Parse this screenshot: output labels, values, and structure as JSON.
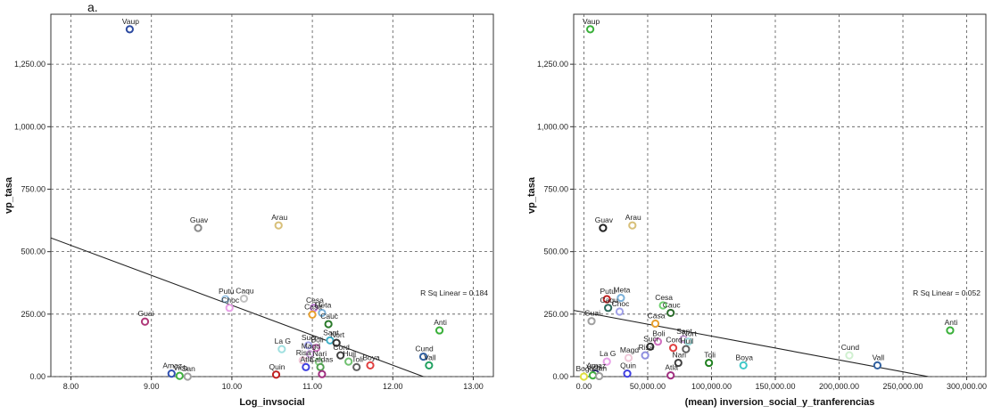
{
  "figure_label": "a.",
  "chart_data": [
    {
      "type": "scatter",
      "xlabel": "Log_invsocial",
      "ylabel": "vp_tasa",
      "xlim": [
        7.75,
        13.25
      ],
      "ylim": [
        0,
        1450
      ],
      "x_ticks": [
        8,
        9,
        10,
        11,
        12,
        13
      ],
      "x_tick_labels": [
        "8.00",
        "9.00",
        "10.00",
        "11.00",
        "12.00",
        "13.00"
      ],
      "y_ticks": [
        0,
        250,
        500,
        750,
        1000,
        1250
      ],
      "y_tick_labels": [
        "0.00",
        "250.00",
        "500.00",
        "750.00",
        "1,000.00",
        "1,250.00"
      ],
      "grid": true,
      "fit_line": {
        "x": [
          7.75,
          12.38
        ],
        "y": [
          555,
          0
        ]
      },
      "annotation": "R Sq Linear = 0.184",
      "points": [
        {
          "label": "Vaup",
          "x": 8.73,
          "y": 1390,
          "color": "#2c4aa0"
        },
        {
          "label": "Guav",
          "x": 9.58,
          "y": 595,
          "color": "#8a8a8a"
        },
        {
          "label": "Arau",
          "x": 10.58,
          "y": 605,
          "color": "#d8c07a"
        },
        {
          "label": "Putu",
          "x": 9.92,
          "y": 310,
          "color": "#9ec8e8"
        },
        {
          "label": "Choc",
          "x": 9.97,
          "y": 275,
          "color": "#e8a0e8"
        },
        {
          "label": "Caqu",
          "x": 10.15,
          "y": 312,
          "color": "#c0c0c0"
        },
        {
          "label": "Guai",
          "x": 8.92,
          "y": 220,
          "color": "#b03a7a"
        },
        {
          "label": "Cesa",
          "x": 11.02,
          "y": 275,
          "color": "#c07ad8"
        },
        {
          "label": "Meta",
          "x": 11.12,
          "y": 255,
          "color": "#7ab0d8"
        },
        {
          "label": "Casa",
          "x": 11.0,
          "y": 248,
          "color": "#e8a030"
        },
        {
          "label": "Cauc",
          "x": 11.2,
          "y": 210,
          "color": "#2a7a2a"
        },
        {
          "label": "Anti",
          "x": 12.58,
          "y": 185,
          "color": "#3ab03a"
        },
        {
          "label": "Sant",
          "x": 11.22,
          "y": 145,
          "color": "#40b0c8"
        },
        {
          "label": "Nort",
          "x": 11.3,
          "y": 135,
          "color": "#333333"
        },
        {
          "label": "Sucr",
          "x": 10.95,
          "y": 125,
          "color": "#a0a0e8"
        },
        {
          "label": "Boli",
          "x": 11.05,
          "y": 115,
          "color": "#d070c0"
        },
        {
          "label": "La G",
          "x": 10.62,
          "y": 110,
          "color": "#a0e0e0"
        },
        {
          "label": "Magd",
          "x": 10.97,
          "y": 90,
          "color": "#c8a0d8"
        },
        {
          "label": "Cord",
          "x": 11.35,
          "y": 85,
          "color": "#404040"
        },
        {
          "label": "Cund",
          "x": 12.38,
          "y": 80,
          "color": "#3060a0"
        },
        {
          "label": "Boya",
          "x": 11.72,
          "y": 45,
          "color": "#e04040"
        },
        {
          "label": "Huil",
          "x": 11.45,
          "y": 60,
          "color": "#70c070"
        },
        {
          "label": "Risa",
          "x": 10.88,
          "y": 65,
          "color": "#f0c8d8"
        },
        {
          "label": "Nari",
          "x": 11.08,
          "y": 60,
          "color": "#8ad08a"
        },
        {
          "label": "Vall",
          "x": 12.45,
          "y": 45,
          "color": "#20a060"
        },
        {
          "label": "Atlá",
          "x": 10.92,
          "y": 38,
          "color": "#4040e0"
        },
        {
          "label": "Caldas",
          "x": 11.1,
          "y": 38,
          "color": "#50a050"
        },
        {
          "label": "Toli",
          "x": 11.55,
          "y": 38,
          "color": "#606060"
        },
        {
          "label": "Quin",
          "x": 10.55,
          "y": 8,
          "color": "#c02020"
        },
        {
          "label": "Amaz",
          "x": 9.25,
          "y": 12,
          "color": "#3050b0"
        },
        {
          "label": "Vich",
          "x": 9.35,
          "y": 3,
          "color": "#40b040"
        },
        {
          "label": "San",
          "x": 9.45,
          "y": 0,
          "color": "#a0a0a0"
        },
        {
          "label": "",
          "x": 11.12,
          "y": 10,
          "color": "#a03080"
        }
      ]
    },
    {
      "type": "scatter",
      "xlabel": "(mean) inversion_social_y_tranferencias",
      "ylabel": "vp_tasa",
      "xlim": [
        -8000,
        315000
      ],
      "ylim": [
        0,
        1450
      ],
      "x_ticks": [
        0,
        50000,
        100000,
        150000,
        200000,
        250000,
        300000
      ],
      "x_tick_labels": [
        "0.00",
        "50,000.00",
        "100,000.00",
        "150,000.00",
        "200,000.00",
        "250,000.00",
        "300,000.00"
      ],
      "y_ticks": [
        0,
        250,
        500,
        750,
        1000,
        1250
      ],
      "y_tick_labels": [
        "0.00",
        "250.00",
        "500.00",
        "750.00",
        "1,000.00",
        "1,250.00"
      ],
      "grid": true,
      "fit_line": {
        "x": [
          -8000,
          270000
        ],
        "y": [
          265,
          0
        ]
      },
      "annotation": "R Sq Linear = 0.052",
      "points": [
        {
          "label": "Vaup",
          "x": 5000,
          "y": 1390,
          "color": "#3ab03a"
        },
        {
          "label": "Guav",
          "x": 15000,
          "y": 595,
          "color": "#222222"
        },
        {
          "label": "Arau",
          "x": 38000,
          "y": 605,
          "color": "#d8c07a"
        },
        {
          "label": "Putu",
          "x": 18000,
          "y": 310,
          "color": "#c02020"
        },
        {
          "label": "Meta",
          "x": 29000,
          "y": 315,
          "color": "#7ab0d8"
        },
        {
          "label": "Cesa",
          "x": 62000,
          "y": 285,
          "color": "#70d070"
        },
        {
          "label": "Caqu",
          "x": 19000,
          "y": 275,
          "color": "#2a6a5a"
        },
        {
          "label": "Choc",
          "x": 28000,
          "y": 260,
          "color": "#a0a0e8"
        },
        {
          "label": "Cauc",
          "x": 68000,
          "y": 255,
          "color": "#2a6a2a"
        },
        {
          "label": "Guai",
          "x": 6000,
          "y": 222,
          "color": "#a0a0a0"
        },
        {
          "label": "Casa",
          "x": 56000,
          "y": 212,
          "color": "#e8a030"
        },
        {
          "label": "Anti",
          "x": 287000,
          "y": 185,
          "color": "#3ab03a"
        },
        {
          "label": "Boli",
          "x": 58000,
          "y": 140,
          "color": "#d070c0"
        },
        {
          "label": "Sant",
          "x": 78000,
          "y": 150,
          "color": "#c8a0d8"
        },
        {
          "label": "Nort",
          "x": 82000,
          "y": 140,
          "color": "#a0e0e0"
        },
        {
          "label": "Sucr",
          "x": 52000,
          "y": 120,
          "color": "#303030"
        },
        {
          "label": "Huil",
          "x": 80000,
          "y": 110,
          "color": "#606060"
        },
        {
          "label": "Cord",
          "x": 70000,
          "y": 115,
          "color": "#e04040"
        },
        {
          "label": "Cund",
          "x": 208000,
          "y": 85,
          "color": "#d0f0d0"
        },
        {
          "label": "Risa",
          "x": 48000,
          "y": 85,
          "color": "#9090e0"
        },
        {
          "label": "Vall",
          "x": 230000,
          "y": 45,
          "color": "#3060a0"
        },
        {
          "label": "Magd",
          "x": 35000,
          "y": 75,
          "color": "#f0c8d8"
        },
        {
          "label": "Toli",
          "x": 98000,
          "y": 55,
          "color": "#208020"
        },
        {
          "label": "Boya",
          "x": 125000,
          "y": 45,
          "color": "#40c8c8"
        },
        {
          "label": "Nari",
          "x": 74000,
          "y": 55,
          "color": "#404040"
        },
        {
          "label": "La G",
          "x": 18000,
          "y": 60,
          "color": "#e8a0e8"
        },
        {
          "label": "Atlá",
          "x": 68000,
          "y": 5,
          "color": "#a03080"
        },
        {
          "label": "Quin",
          "x": 34000,
          "y": 12,
          "color": "#4040e0"
        },
        {
          "label": "Amaz",
          "x": 9000,
          "y": 12,
          "color": "#303080"
        },
        {
          "label": "Vich",
          "x": 7000,
          "y": 5,
          "color": "#40b040"
        },
        {
          "label": "San",
          "x": 12000,
          "y": 2,
          "color": "#a0a0a0"
        },
        {
          "label": "Bogo",
          "x": 0,
          "y": 0,
          "color": "#e0e040"
        }
      ]
    }
  ]
}
